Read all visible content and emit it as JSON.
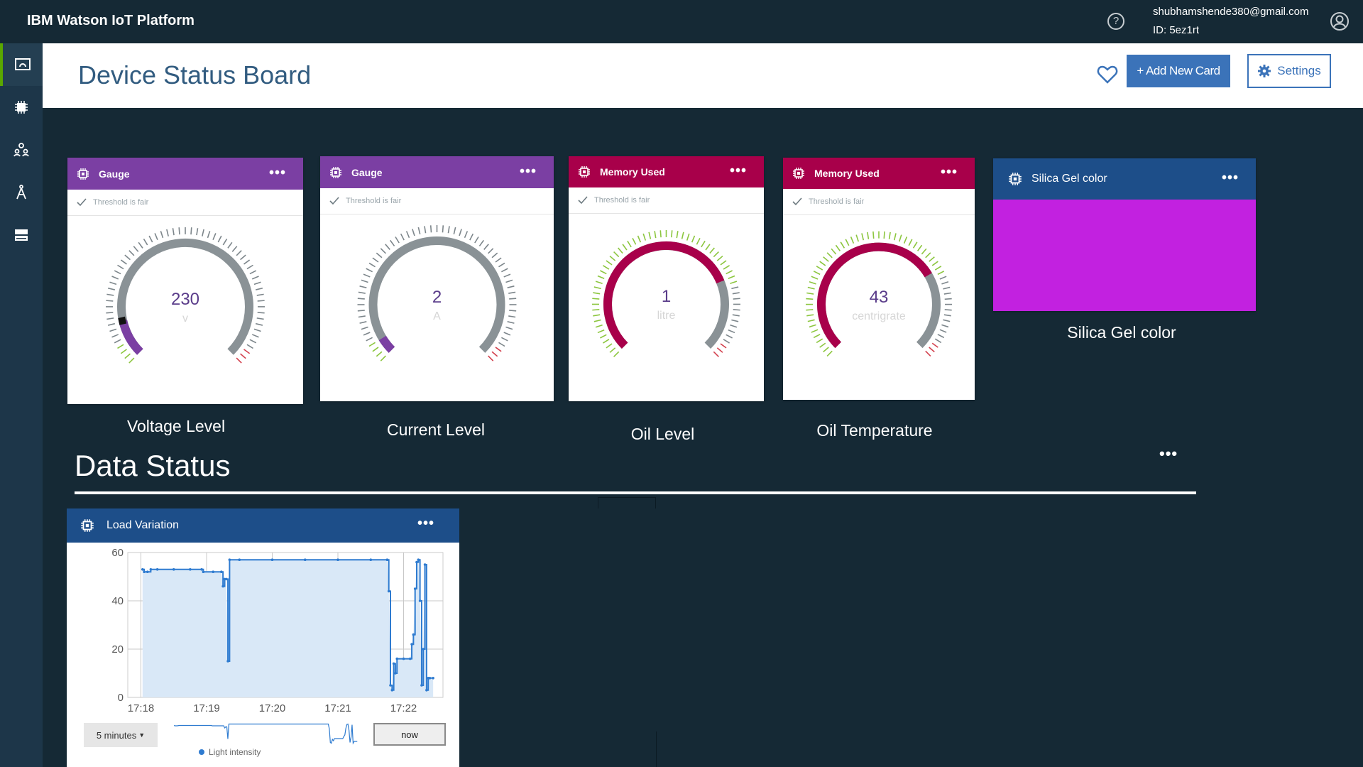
{
  "app": {
    "brand": "IBM Watson IoT Platform",
    "user_email": "shubhamshende380@gmail.com",
    "user_id": "ID: 5ez1rt"
  },
  "sidebar": {
    "items": [
      {
        "name": "boards-icon",
        "active": true
      },
      {
        "name": "devices-icon",
        "active": false
      },
      {
        "name": "members-icon",
        "active": false
      },
      {
        "name": "apps-icon",
        "active": false
      },
      {
        "name": "extensions-icon",
        "active": false
      }
    ]
  },
  "header": {
    "title": "Device Status Board",
    "add_card_label": "+ Add New Card",
    "settings_label": "Settings"
  },
  "cards": [
    {
      "header": "Gauge",
      "color": "#7b3fa3",
      "threshold": "Threshold is fair",
      "value": "230",
      "unit": "v",
      "label": "Voltage Level",
      "fraction": 0.12
    },
    {
      "header": "Gauge",
      "color": "#7b3fa3",
      "threshold": "Threshold is fair",
      "value": "2",
      "unit": "A",
      "label": "Current Level",
      "fraction": 0.05
    },
    {
      "header": "Memory Used",
      "color": "#a8004a",
      "threshold": "Threshold is fair",
      "value": "1",
      "unit": "litre",
      "label": "Oil Level",
      "fraction": 0.75
    },
    {
      "header": "Memory Used",
      "color": "#a8004a",
      "threshold": "Threshold is fair",
      "value": "43",
      "unit": "centrigrate",
      "label": "Oil Temperature",
      "fraction": 0.72
    }
  ],
  "color_card": {
    "header": "Silica Gel color",
    "color": "#c221e0",
    "header_color": "#1d4e89",
    "label": "Silica Gel color"
  },
  "section": {
    "title": "Data Status"
  },
  "chart_card": {
    "title": "Load Variation",
    "range_label": "5 minutes",
    "now_label": "now",
    "legend_label": "Light intensity"
  },
  "chart_data": {
    "type": "line",
    "title": "",
    "xlabel": "",
    "ylabel": "",
    "ylim": [
      0,
      60
    ],
    "x_ticks": [
      "17:18",
      "17:19",
      "17:20",
      "17:21",
      "17:22"
    ],
    "y_ticks": [
      "0",
      "20",
      "40",
      "60"
    ],
    "series": [
      {
        "name": "Light intensity",
        "color": "#2e7bd0",
        "points": [
          [
            17.605,
            53
          ],
          [
            17.61,
            52
          ],
          [
            17.62,
            52
          ],
          [
            17.63,
            53
          ],
          [
            17.65,
            53
          ],
          [
            17.7,
            53
          ],
          [
            17.75,
            53
          ],
          [
            17.785,
            53
          ],
          [
            17.79,
            52
          ],
          [
            17.82,
            52
          ],
          [
            17.845,
            52
          ],
          [
            17.85,
            46
          ],
          [
            17.855,
            49
          ],
          [
            17.86,
            49
          ],
          [
            17.865,
            15
          ],
          [
            17.87,
            57
          ],
          [
            17.9,
            57
          ],
          [
            18.0,
            57
          ],
          [
            18.1,
            57
          ],
          [
            18.2,
            57
          ],
          [
            18.3,
            57
          ],
          [
            18.35,
            57
          ],
          [
            18.355,
            44
          ],
          [
            18.36,
            5
          ],
          [
            18.365,
            3
          ],
          [
            18.37,
            14
          ],
          [
            18.375,
            10
          ],
          [
            18.38,
            16
          ],
          [
            18.4,
            16
          ],
          [
            18.42,
            16
          ],
          [
            18.425,
            22
          ],
          [
            18.43,
            26
          ],
          [
            18.435,
            45
          ],
          [
            18.44,
            56
          ],
          [
            18.445,
            57
          ],
          [
            18.45,
            40
          ],
          [
            18.455,
            5
          ],
          [
            18.46,
            20
          ],
          [
            18.465,
            55
          ],
          [
            18.47,
            3
          ],
          [
            18.475,
            8
          ],
          [
            18.48,
            8
          ],
          [
            18.49,
            8
          ]
        ]
      }
    ]
  }
}
